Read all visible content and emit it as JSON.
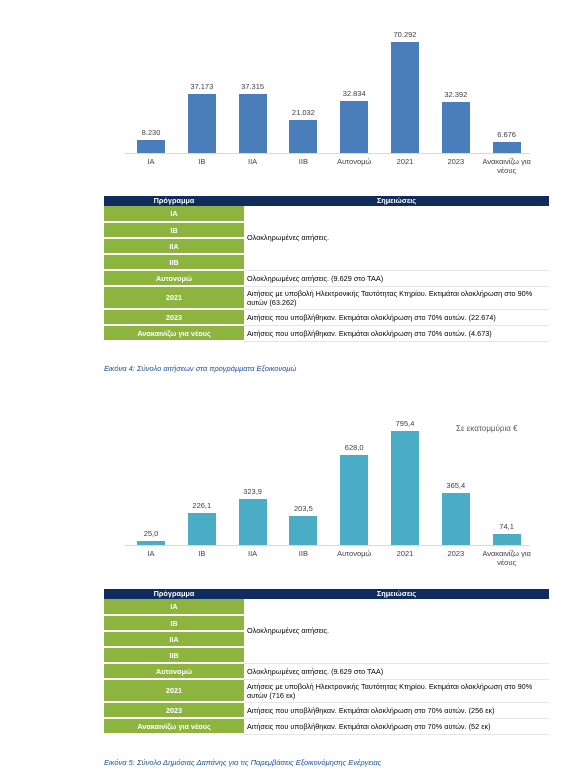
{
  "chart_data": [
    {
      "type": "bar",
      "categories": [
        "ΙΑ",
        "ΙΒ",
        "ΙΙΑ",
        "ΙΙΒ",
        "Αυτονομώ",
        "2021",
        "2023",
        "Ανακαινίζω για νέους"
      ],
      "values": [
        8230,
        37173,
        37315,
        21032,
        32834,
        70292,
        32392,
        6676
      ],
      "value_labels": [
        "8.230",
        "37.173",
        "37.315",
        "21.032",
        "32.834",
        "70.292",
        "32.392",
        "6.676"
      ],
      "color": "#4a7ebb"
    },
    {
      "type": "bar",
      "annotation": "Σε εκατομμύρια €",
      "categories": [
        "ΙΑ",
        "ΙΒ",
        "ΙΙΑ",
        "ΙΙΒ",
        "Αυτονομώ",
        "2021",
        "2023",
        "Ανακαινίζω για νέους"
      ],
      "values": [
        25.0,
        226.1,
        323.9,
        203.5,
        628.0,
        795.4,
        365.4,
        74.1
      ],
      "value_labels": [
        "25,0",
        "226,1",
        "323,9",
        "203,5",
        "628,0",
        "795,4",
        "365,4",
        "74,1"
      ],
      "color": "#4bacc6"
    }
  ],
  "tables": [
    {
      "header": [
        "Πρόγραμμα",
        "Σημειώσεις"
      ],
      "rows": [
        [
          "ΙΑ",
          "Ολοκληρωμένες αιτήσεις."
        ],
        [
          "ΙΒ"
        ],
        [
          "ΙΙΑ"
        ],
        [
          "ΙΙΒ"
        ],
        [
          "Αυτονομώ",
          "Ολοκληρωμένες αιτήσεις. (9.629 στο ΤΑΑ)"
        ],
        [
          "2021",
          "Αιτήσεις με υποβολή Ηλεκτρονικής Ταυτότητας Κτηρίου. Εκτιμάται ολοκλήρωση στο 90% αυτών (63.262)"
        ],
        [
          "2023",
          "Αιτήσεις που υποβλήθηκαν. Εκτιμάται ολοκλήρωση στο 70% αυτών. (22.674)"
        ],
        [
          "Ανακαινίζω για νέους",
          "Αιτήσεις που υποβλήθηκαν. Εκτιμάται ολοκλήρωση στο 70% αυτών. (4.673)"
        ]
      ]
    },
    {
      "header": [
        "Πρόγραμμα",
        "Σημειώσεις"
      ],
      "rows": [
        [
          "ΙΑ",
          "Ολοκληρωμένες αιτήσεις."
        ],
        [
          "ΙΒ"
        ],
        [
          "ΙΙΑ"
        ],
        [
          "ΙΙΒ"
        ],
        [
          "Αυτονομώ",
          "Ολοκληρωμένες αιτήσεις. (9.629 στο ΤΑΑ)"
        ],
        [
          "2021",
          "Αιτήσεις με υποβολή Ηλεκτρονικής Ταυτότητας Κτηρίου. Εκτιμάται ολοκλήρωση στο 90% αυτών (716 εκ)"
        ],
        [
          "2023",
          "Αιτήσεις που υποβλήθηκαν. Εκτιμάται ολοκλήρωση στο 70% αυτών. (256 εκ)"
        ],
        [
          "Ανακαινίζω για νέους",
          "Αιτήσεις που υποβλήθηκαν. Εκτιμάται ολοκλήρωση στο 70% αυτών. (52 εκ)"
        ]
      ]
    }
  ],
  "captions": [
    "Εικόνα 4: Σύνολο αιτήσεων στα προγράμματα Εξοικονομώ",
    "Εικόνα 5: Σύνολο Δημόσιας Δαπάνης για τις Παρεμβάσεις Εξοικονόμησης Ενέργειας"
  ]
}
